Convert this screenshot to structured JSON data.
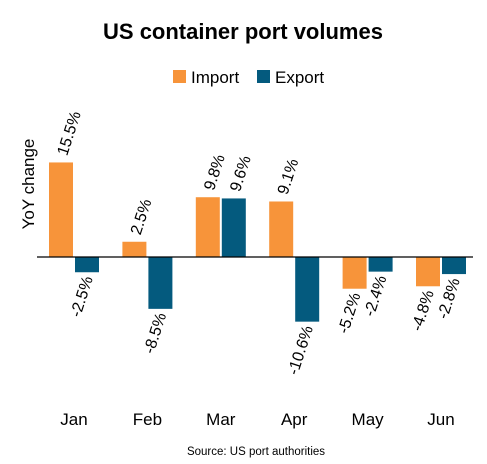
{
  "chart_data": {
    "type": "bar",
    "title": "US container port volumes",
    "ylabel": "YoY change",
    "xlabel": "",
    "source": "Source: US port authorities",
    "categories": [
      "Jan",
      "Feb",
      "Mar",
      "Apr",
      "May",
      "Jun"
    ],
    "series": [
      {
        "name": "Import",
        "color": "#F7943A",
        "values": [
          15.5,
          2.5,
          9.8,
          9.1,
          -5.2,
          -4.8
        ],
        "labels": [
          "15.5%",
          "2.5%",
          "9.8%",
          "9.1%",
          "-5.2%",
          "-4.8%"
        ]
      },
      {
        "name": "Export",
        "color": "#045A7E",
        "values": [
          -2.5,
          -8.5,
          9.6,
          -10.6,
          -2.4,
          -2.8
        ],
        "labels": [
          "-2.5%",
          "-8.5%",
          "9.6%",
          "-10.6%",
          "-2.4%",
          "-2.8%"
        ]
      }
    ],
    "ylim": [
      -12,
      17
    ],
    "legend": "top-center",
    "grid": false
  }
}
